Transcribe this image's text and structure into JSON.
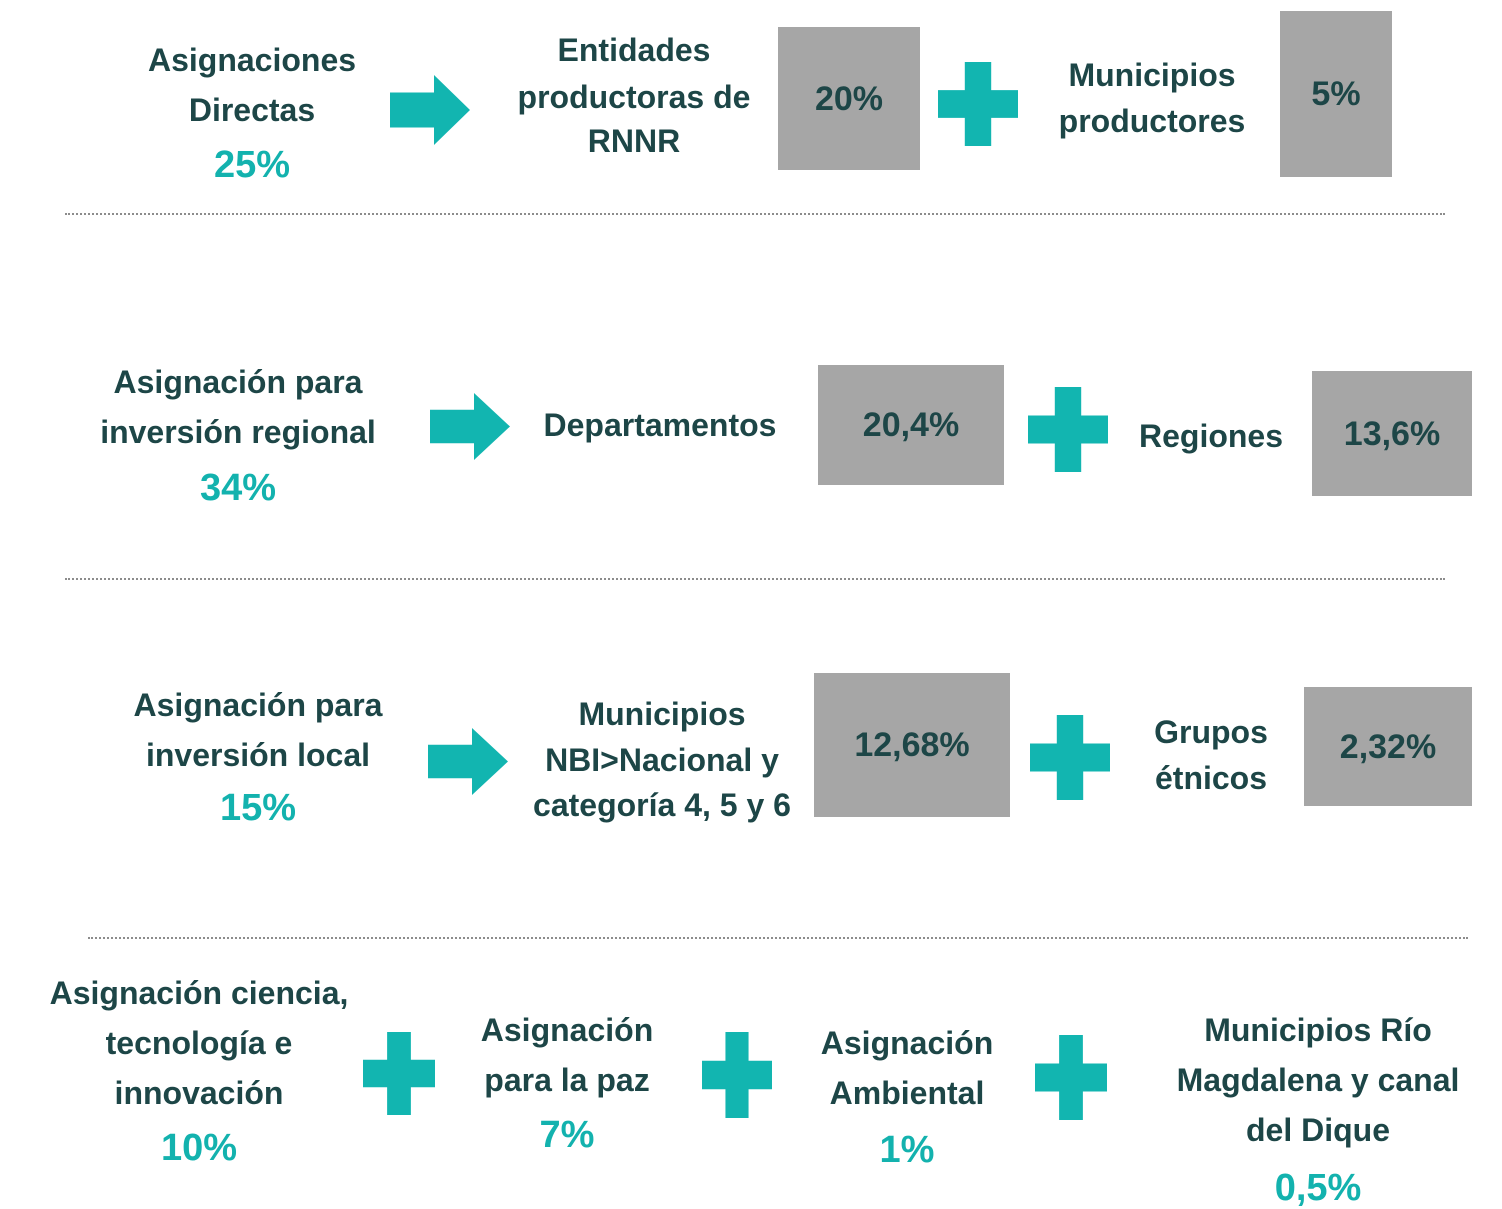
{
  "rows": [
    {
      "title": [
        "Asignaciones",
        "Directas"
      ],
      "share": "25%",
      "parts": [
        {
          "label": [
            "Entidades",
            "productoras de",
            "RNNR"
          ],
          "share": "20%"
        },
        {
          "label": [
            "Municipios",
            "productores"
          ],
          "share": "5%"
        }
      ]
    },
    {
      "title": [
        "Asignación para",
        "inversión regional"
      ],
      "share": "34%",
      "parts": [
        {
          "label": [
            "Departamentos"
          ],
          "share": "20,4%"
        },
        {
          "label": [
            "Regiones"
          ],
          "share": "13,6%"
        }
      ]
    },
    {
      "title": [
        "Asignación para",
        "inversión local"
      ],
      "share": "15%",
      "parts": [
        {
          "label": [
            "Municipios",
            "NBI>Nacional y",
            "categoría 4, 5 y 6"
          ],
          "share": "12,68%"
        },
        {
          "label": [
            "Grupos",
            "étnicos"
          ],
          "share": "2,32%"
        }
      ]
    }
  ],
  "last_row": {
    "items": [
      {
        "label": [
          "Asignación ciencia,",
          "tecnología e",
          "innovación"
        ],
        "share": "10%"
      },
      {
        "label": [
          "Asignación",
          "para la paz"
        ],
        "share": "7%"
      },
      {
        "label": [
          "Asignación",
          "Ambiental"
        ],
        "share": "1%"
      },
      {
        "label": [
          "Municipios Río",
          "Magdalena y canal",
          "del Dique"
        ],
        "share": "0,5%"
      }
    ]
  }
}
